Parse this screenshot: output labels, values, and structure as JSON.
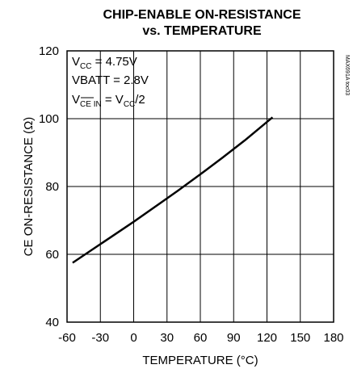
{
  "chart_data": {
    "type": "line",
    "title_line1": "CHIP-ENABLE ON-RESISTANCE",
    "title_line2": "vs. TEMPERATURE",
    "xlabel": "TEMPERATURE (°C)",
    "ylabel": "CE ON-RESISTANCE (Ω)",
    "xlim": [
      -60,
      180
    ],
    "ylim": [
      40,
      120
    ],
    "xticks": [
      -60,
      -30,
      0,
      30,
      60,
      90,
      120,
      150,
      180
    ],
    "yticks": [
      40,
      60,
      80,
      100,
      120
    ],
    "grid": true,
    "conditions": {
      "vcc_prefix": "V",
      "vcc_sub": "CC",
      "vcc_value": " = 4.75V",
      "vbatt": "VBATT = 2.8V",
      "vce_prefix": "V",
      "vce_sub_over": "CE",
      "vce_sub_rest": " IN",
      "vce_mid": " = V",
      "vce_sub2": "CC",
      "vce_end": "/2"
    },
    "side_code": "MAX691A toc03",
    "series": [
      {
        "x": [
          -55,
          -40,
          -20,
          0,
          20,
          40,
          60,
          80,
          100,
          125
        ],
        "y": [
          57.5,
          60.8,
          65.2,
          69.6,
          74.2,
          78.8,
          83.6,
          88.5,
          93.6,
          100.4
        ]
      }
    ]
  }
}
